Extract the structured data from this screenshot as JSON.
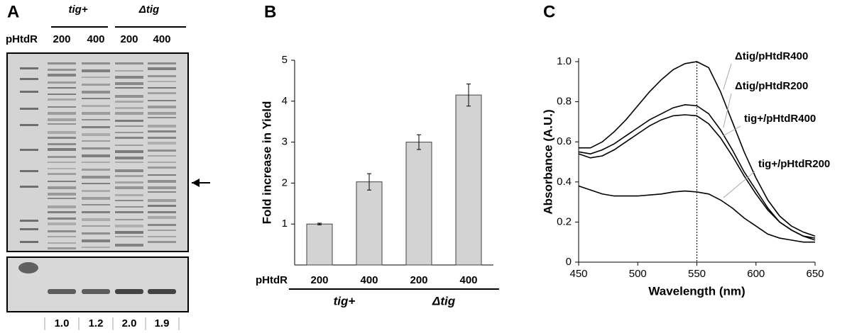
{
  "gel": {
    "panel": "A",
    "row_label": "pHtdR",
    "groups": [
      "tig+",
      "Δtig"
    ],
    "lanes": [
      "200",
      "400",
      "200",
      "400"
    ],
    "quantities": [
      "1.0",
      "1.2",
      "2.0",
      "1.9"
    ]
  },
  "chart_data": [
    {
      "type": "bar",
      "panel": "B",
      "ylabel": "Fold increase in Yield",
      "row_label": "pHtdR",
      "categories": [
        "200",
        "400",
        "200",
        "400"
      ],
      "groups": [
        "tig+",
        "Δtig"
      ],
      "values": [
        1.0,
        2.03,
        3.0,
        4.15
      ],
      "errors": [
        0.02,
        0.2,
        0.18,
        0.27
      ],
      "color": "#d3d3d3",
      "ylim": [
        0,
        5
      ],
      "yticks": [
        1,
        2,
        3,
        4,
        5
      ]
    },
    {
      "type": "line",
      "panel": "C",
      "xlabel": "Wavelength (nm)",
      "ylabel": "Absorbance (A.U.)",
      "x": [
        450,
        460,
        470,
        480,
        490,
        500,
        510,
        520,
        530,
        540,
        550,
        560,
        570,
        580,
        590,
        600,
        610,
        620,
        630,
        640,
        650
      ],
      "series": [
        {
          "name": "Δtig/pHtdR400",
          "color": "#000000",
          "values": [
            0.57,
            0.57,
            0.6,
            0.65,
            0.71,
            0.78,
            0.85,
            0.91,
            0.96,
            0.99,
            1.0,
            0.97,
            0.85,
            0.7,
            0.55,
            0.42,
            0.31,
            0.23,
            0.18,
            0.15,
            0.13
          ]
        },
        {
          "name": "Δtig/pHtdR200",
          "color": "#000000",
          "values": [
            0.55,
            0.54,
            0.56,
            0.59,
            0.63,
            0.67,
            0.71,
            0.74,
            0.77,
            0.785,
            0.78,
            0.74,
            0.66,
            0.56,
            0.45,
            0.36,
            0.27,
            0.2,
            0.16,
            0.13,
            0.12
          ]
        },
        {
          "name": "tig+/pHtdR400",
          "color": "#000000",
          "values": [
            0.54,
            0.52,
            0.53,
            0.56,
            0.6,
            0.64,
            0.68,
            0.71,
            0.73,
            0.735,
            0.73,
            0.69,
            0.62,
            0.53,
            0.43,
            0.34,
            0.26,
            0.2,
            0.16,
            0.13,
            0.11
          ]
        },
        {
          "name": "tig+/pHtdR200",
          "color": "#000000",
          "values": [
            0.38,
            0.36,
            0.34,
            0.33,
            0.33,
            0.33,
            0.335,
            0.34,
            0.35,
            0.355,
            0.35,
            0.34,
            0.31,
            0.27,
            0.22,
            0.18,
            0.14,
            0.12,
            0.11,
            0.1,
            0.1
          ]
        }
      ],
      "vline": 550,
      "xlim": [
        450,
        650
      ],
      "xticks": [
        450,
        500,
        550,
        600,
        650
      ],
      "ylim": [
        0,
        1
      ],
      "yticks": [
        0,
        0.2,
        0.4,
        0.6,
        0.8,
        {
          "value": 1,
          "label": "1.0"
        }
      ]
    }
  ]
}
